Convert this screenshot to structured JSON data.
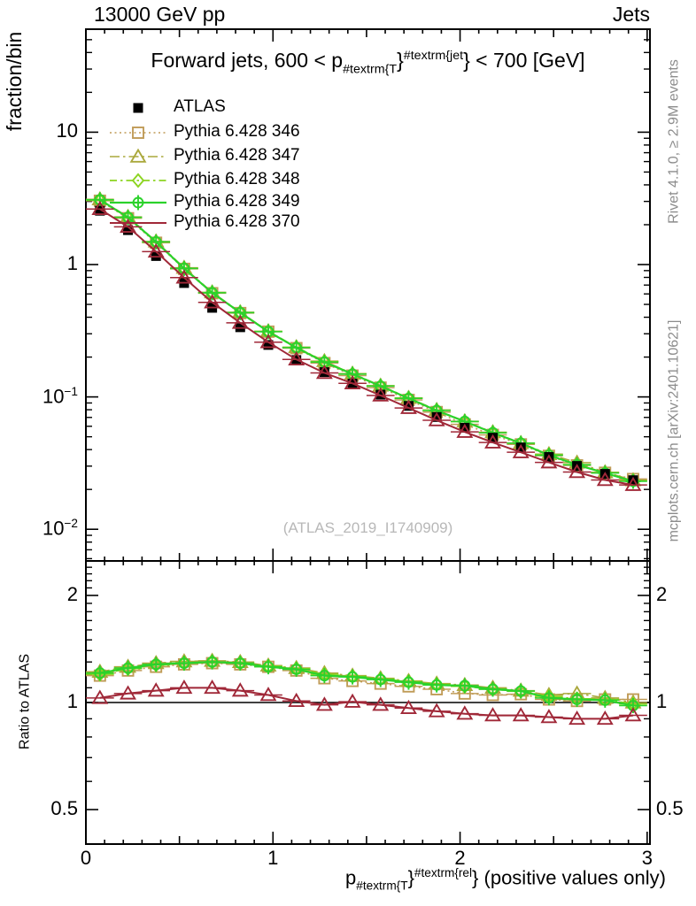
{
  "page": {
    "header_left": "13000 GeV pp",
    "header_right": "Jets",
    "watermark": "(ATLAS_2019_I1740909)",
    "side_note_top": "Rivet 4.1.0, ≥ 2.9M events",
    "side_note_bottom": "mcplots.cern.ch [arXiv:2401.10621]",
    "ylabel_main": "fraction/bin",
    "ylabel_ratio": "Ratio to ATLAS"
  },
  "title_parts": {
    "pre": "Forward jets, 600 < p",
    "sub": "#textrm{T",
    "mid": "}",
    "sup": "#textrm{jet",
    "post": "} < 700 [GeV]"
  },
  "xlabel_parts": {
    "pre": "p",
    "sub": "#textrm{T",
    "mid": "}",
    "sup": "#textrm{rel",
    "post": "} (positive values only)"
  },
  "chart_data": {
    "type": "line",
    "title": "Forward jets, 600 < pT^jet < 700 [GeV]",
    "xlabel": "pT^rel (positive values only)",
    "ylabel": "fraction/bin",
    "ratio_ylabel": "Ratio to ATLAS",
    "yscale": "log",
    "xlim": [
      0,
      3.015
    ],
    "ylim_main": [
      0.0058,
      60
    ],
    "ylim_ratio": [
      0.4,
      2.5
    ],
    "x_major_ticks": [
      0,
      1,
      2,
      3
    ],
    "y_major_ticks_main": [
      {
        "v": 10,
        "base": "10",
        "exp": ""
      },
      {
        "v": 1,
        "base": "1",
        "exp": ""
      },
      {
        "v": 0.1,
        "base": "10",
        "exp": "−1"
      },
      {
        "v": 0.01,
        "base": "10",
        "exp": "−2"
      }
    ],
    "y_major_ticks_ratio": [
      {
        "v": 2,
        "label": "2"
      },
      {
        "v": 1,
        "label": "1"
      },
      {
        "v": 0.5,
        "label": "0.5"
      }
    ],
    "bin_half_width": 0.075,
    "x": [
      0.075,
      0.225,
      0.375,
      0.525,
      0.675,
      0.825,
      0.975,
      1.125,
      1.275,
      1.425,
      1.575,
      1.725,
      1.875,
      2.025,
      2.175,
      2.325,
      2.475,
      2.625,
      2.775,
      2.925
    ],
    "note": "MC main-panel values = ATLAS values × ratio; ratio panel shows MC/ATLAS",
    "series": [
      {
        "name": "ATLAS",
        "color": "#000000",
        "marker": "filled-square",
        "line": "none",
        "legend_marker": true,
        "values": [
          2.55,
          1.82,
          1.16,
          0.725,
          0.471,
          0.336,
          0.247,
          0.19,
          0.154,
          0.126,
          0.104,
          0.0855,
          0.0705,
          0.0585,
          0.0492,
          0.0415,
          0.0352,
          0.0301,
          0.0262,
          0.0235
        ]
      },
      {
        "name": "Pythia 6.428 346",
        "color": "#c09c58",
        "marker": "open-square",
        "line": "dotted",
        "legend_marker": true,
        "ratio": [
          1.19,
          1.23,
          1.26,
          1.28,
          1.29,
          1.28,
          1.26,
          1.23,
          1.17,
          1.15,
          1.13,
          1.11,
          1.09,
          1.06,
          1.05,
          1.055,
          1.02,
          1.01,
          1.02,
          1.02
        ]
      },
      {
        "name": "Pythia 6.428 347",
        "color": "#aaa83c",
        "marker": "open-triangle",
        "line": "dashdot",
        "legend_marker": true,
        "ratio": [
          1.22,
          1.26,
          1.29,
          1.305,
          1.31,
          1.3,
          1.27,
          1.25,
          1.21,
          1.19,
          1.17,
          1.15,
          1.13,
          1.12,
          1.1,
          1.08,
          1.05,
          1.06,
          1.03,
          1.0
        ]
      },
      {
        "name": "Pythia 6.428 348",
        "color": "#8cd420",
        "marker": "open-diamond",
        "line": "dashdot2",
        "legend_marker": true,
        "ratio": [
          1.2,
          1.245,
          1.275,
          1.29,
          1.3,
          1.29,
          1.265,
          1.245,
          1.2,
          1.185,
          1.165,
          1.145,
          1.125,
          1.11,
          1.09,
          1.075,
          1.04,
          1.025,
          1.02,
          0.99
        ]
      },
      {
        "name": "Pythia 6.428 349",
        "color": "#2bd22b",
        "marker": "circle-plus",
        "line": "solid",
        "legend_marker": true,
        "ratio": [
          1.21,
          1.25,
          1.28,
          1.29,
          1.3,
          1.29,
          1.26,
          1.24,
          1.19,
          1.18,
          1.16,
          1.14,
          1.12,
          1.115,
          1.09,
          1.077,
          1.03,
          1.02,
          1.015,
          0.98
        ]
      },
      {
        "name": "Pythia 6.428 370",
        "color": "#a02838",
        "marker": "open-triangle",
        "line": "solid",
        "legend_marker": false,
        "ratio": [
          1.03,
          1.06,
          1.08,
          1.1,
          1.1,
          1.08,
          1.05,
          1.01,
          0.985,
          1.005,
          0.985,
          0.965,
          0.945,
          0.93,
          0.92,
          0.92,
          0.91,
          0.9,
          0.9,
          0.92
        ]
      }
    ]
  }
}
